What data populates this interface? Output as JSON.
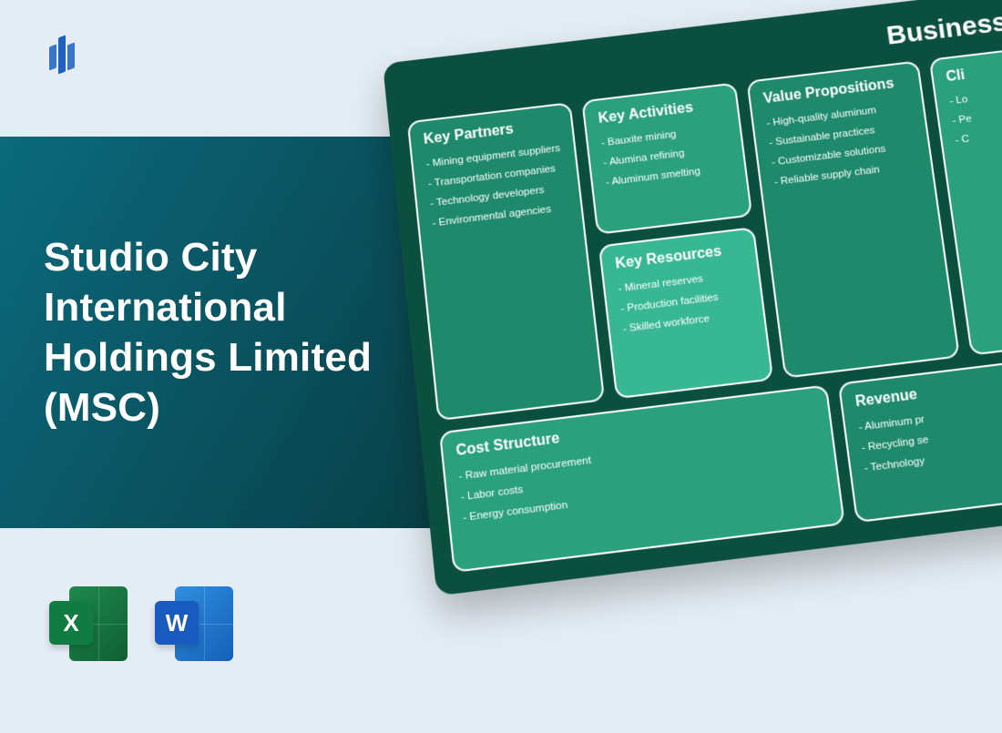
{
  "colors": {
    "page_bg": "#e4edf4",
    "panel_gradient_from": "#0b6a7d",
    "panel_gradient_to": "#083c42",
    "card_bg": "#0b4f3e",
    "box_border": "#ffffff",
    "box_colors": {
      "key_partners": "#1f8a6b",
      "key_activities": "#2aa07d",
      "key_resources": "#38b793",
      "value_props": "#1f8a6b",
      "clients": "#2aa07d",
      "cost_structure": "#2aa07d",
      "revenue": "#1f8a6b"
    },
    "text_white": "#ffffff",
    "logo_blue": "#1f5fbf",
    "excel_front": "#107c41",
    "word_front": "#185abd"
  },
  "title": "Studio City International Holdings Limited (MSC)",
  "card_title": "Business Model",
  "apps": {
    "excel": "X",
    "word": "W"
  },
  "canvas": {
    "key_partners": {
      "heading": "Key Partners",
      "items": [
        "Mining equipment suppliers",
        "Transportation companies",
        "Technology developers",
        "Environmental agencies"
      ]
    },
    "key_activities": {
      "heading": "Key Activities",
      "items": [
        "Bauxite mining",
        "Alumina refining",
        "Aluminum smelting"
      ]
    },
    "key_resources": {
      "heading": "Key Resources",
      "items": [
        "Mineral reserves",
        "Production facilities",
        "Skilled workforce"
      ]
    },
    "value_props": {
      "heading": "Value Propositions",
      "items": [
        "High-quality aluminum",
        "Sustainable practices",
        "Customizable solutions",
        "Reliable supply chain"
      ]
    },
    "clients": {
      "heading": "Cli",
      "items": [
        "Lo",
        "Pe",
        "C"
      ]
    },
    "cost_structure": {
      "heading": "Cost Structure",
      "items": [
        "Raw material procurement",
        "Labor costs",
        "Energy consumption"
      ]
    },
    "revenue": {
      "heading": "Revenue",
      "items": [
        "Aluminum pr",
        "Recycling se",
        "Technology"
      ]
    }
  }
}
